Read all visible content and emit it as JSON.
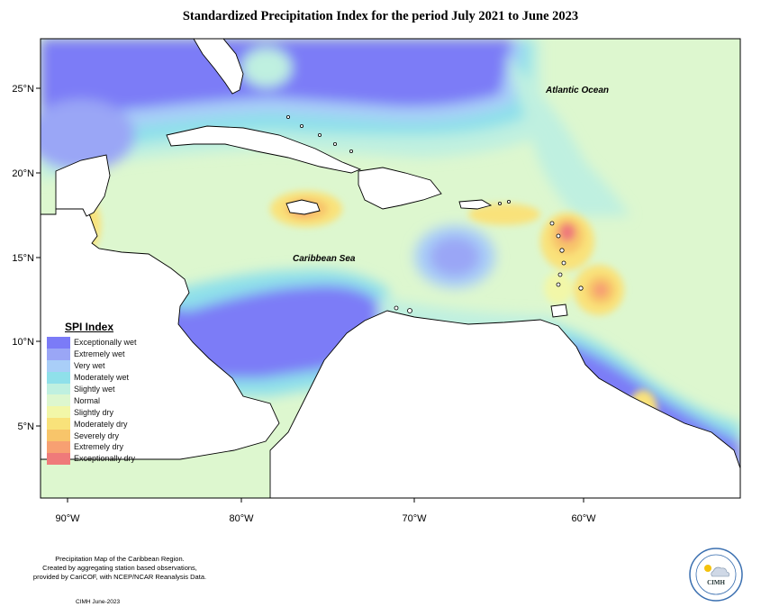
{
  "title": "Standardized Precipitation Index for the period July 2021 to June 2023",
  "ocean_labels": {
    "atlantic": "Atlantic Ocean",
    "caribbean": "Caribbean Sea"
  },
  "x_ticks": [
    "90°W",
    "80°W",
    "70°W",
    "60°W"
  ],
  "y_ticks": [
    "25°N",
    "20°N",
    "15°N",
    "10°N",
    "5°N"
  ],
  "legend": {
    "title": "SPI Index",
    "items": [
      {
        "label": "Exceptionally wet",
        "color": "#7b7bf7"
      },
      {
        "label": "Extremely wet",
        "color": "#9aa6f6"
      },
      {
        "label": "Very wet",
        "color": "#a9cef8"
      },
      {
        "label": "Moderately wet",
        "color": "#8fe0ea"
      },
      {
        "label": "Slightly wet",
        "color": "#bff0e0"
      },
      {
        "label": "Normal",
        "color": "#ddf7cf"
      },
      {
        "label": "Slightly dry",
        "color": "#f2f7a8"
      },
      {
        "label": "Moderately dry",
        "color": "#f9e27a"
      },
      {
        "label": "Severely dry",
        "color": "#f8c56a"
      },
      {
        "label": "Extremely dry",
        "color": "#f7a072"
      },
      {
        "label": "Exceptionally dry",
        "color": "#ef7a7a"
      }
    ]
  },
  "caption": {
    "line1": "Precipitation Map of the Caribbean Region.",
    "line2": "Created by aggregating station based observations,",
    "line3": "provided by CariCOF, with NCEP/NCAR Reanalysis Data."
  },
  "credit": "CIMH June-2023",
  "logo": {
    "icon": "cimh-logo-icon",
    "text": "CIMH"
  }
}
